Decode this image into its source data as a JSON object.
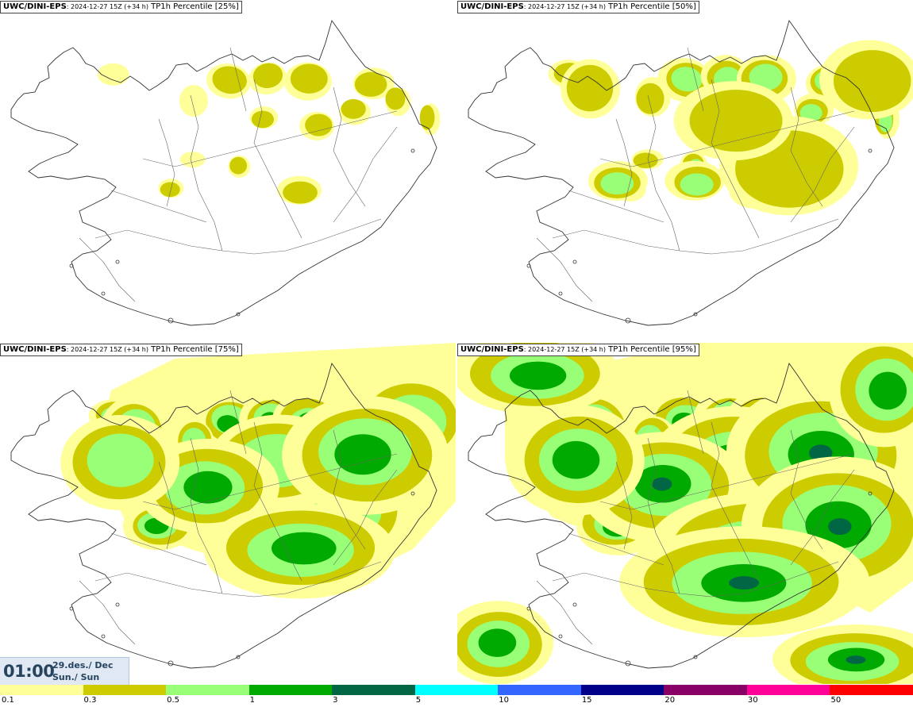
{
  "panels": [
    {
      "model": "UWC/DINI-EPS",
      "run": ": 2024-12-27 15Z (+34 h)",
      "field": " TP1h Percentile [25%]",
      "level": 0
    },
    {
      "model": "UWC/DINI-EPS",
      "run": ": 2024-12-27 15Z (+34 h)",
      "field": " TP1h Percentile [50%]",
      "level": 1
    },
    {
      "model": "UWC/DINI-EPS",
      "run": ": 2024-12-27 15Z (+34 h)",
      "field": " TP1h Percentile [75%]",
      "level": 2
    },
    {
      "model": "UWC/DINI-EPS",
      "run": ": 2024-12-27 15Z (+34 h)",
      "field": " TP1h Percentile [95%]",
      "level": 3
    }
  ],
  "valid_time": {
    "time": "01:00",
    "date_line1": "29.des./ Dec",
    "date_line2": "Sun./ Sun"
  },
  "legend": {
    "colors": [
      "#ffff99",
      "#cccc00",
      "#99ff77",
      "#00aa00",
      "#006644",
      "#00ffff",
      "#3366ff",
      "#000088",
      "#880066",
      "#ff0099",
      "#ff0000"
    ],
    "labels": [
      "0.1",
      "0.3",
      "0.5",
      "1",
      "3",
      "5",
      "10",
      "15",
      "20",
      "30",
      "50"
    ]
  }
}
